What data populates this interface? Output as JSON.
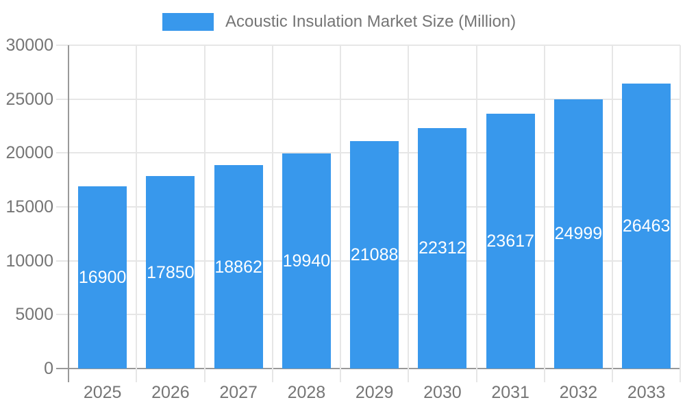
{
  "chart_data": {
    "type": "bar",
    "title": "Acoustic Insulation Market Size (Million)",
    "categories": [
      "2025",
      "2026",
      "2027",
      "2028",
      "2029",
      "2030",
      "2031",
      "2032",
      "2033"
    ],
    "series": [
      {
        "name": "Acoustic Insulation Market Size (Million)",
        "values": [
          16900,
          17850,
          18862,
          19940,
          21088,
          22312,
          23617,
          24999,
          26463
        ]
      }
    ],
    "bar_labels": [
      16900,
      17850,
      18862,
      19940,
      21088,
      22312,
      23617,
      24999,
      26463
    ],
    "xlabel": "",
    "ylabel": "",
    "ylim": [
      0,
      30000
    ],
    "yticks": [
      0,
      5000,
      10000,
      15000,
      20000,
      25000,
      30000
    ],
    "grid": "on",
    "legend_position": "top-center",
    "colors": {
      "bar": "#3898EC",
      "grid": "#E6E6E6",
      "axis": "#999999",
      "text": "#757575",
      "bar_label": "#FFFFFF",
      "background": "#FFFFFF"
    }
  }
}
